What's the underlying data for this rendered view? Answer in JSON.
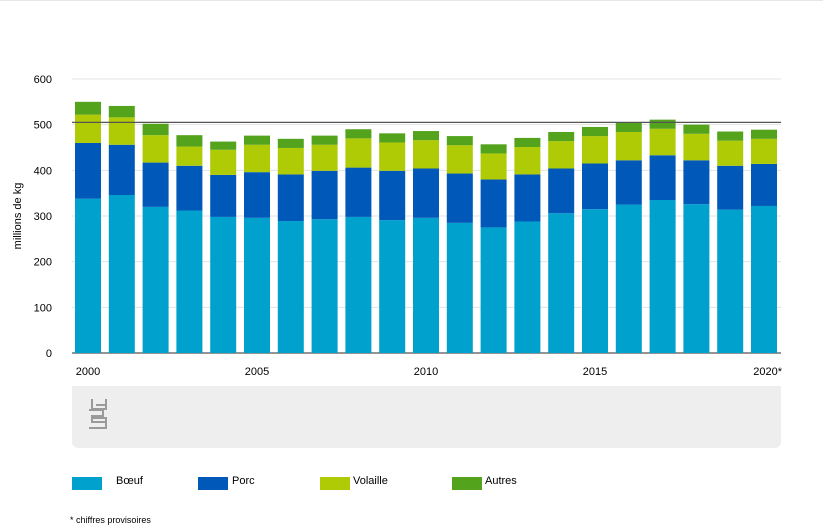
{
  "chart_data": {
    "type": "bar",
    "stacked": true,
    "ylabel": "millions de kg",
    "ylim": [
      0,
      600
    ],
    "yticks": [
      0,
      100,
      200,
      300,
      400,
      500,
      600
    ],
    "xtick_labels": [
      "2000",
      "2005",
      "2010",
      "2015",
      "2020*"
    ],
    "grid": true,
    "legend_position": "bottom",
    "reference_line": 505,
    "categories": [
      "2000",
      "2001",
      "2002",
      "2003",
      "2004",
      "2005",
      "2006",
      "2007",
      "2008",
      "2009",
      "2010",
      "2011",
      "2012",
      "2013",
      "2014",
      "2015",
      "2016",
      "2017",
      "2018",
      "2019",
      "2020*"
    ],
    "series": [
      {
        "name": "Bœuf",
        "color": "#00a1cd",
        "values": [
          338,
          346,
          320,
          312,
          298,
          296,
          289,
          293,
          298,
          291,
          296,
          285,
          275,
          288,
          306,
          315,
          325,
          335,
          326,
          314,
          322
        ]
      },
      {
        "name": "Porc",
        "color": "#0058b8",
        "values": [
          122,
          110,
          97,
          98,
          92,
          100,
          102,
          106,
          108,
          108,
          108,
          108,
          105,
          103,
          98,
          100,
          97,
          98,
          96,
          96,
          92
        ]
      },
      {
        "name": "Volaille",
        "color": "#afcb05",
        "values": [
          62,
          60,
          60,
          42,
          55,
          60,
          58,
          57,
          64,
          62,
          62,
          62,
          57,
          60,
          60,
          60,
          62,
          58,
          58,
          55,
          55
        ]
      },
      {
        "name": "Autres",
        "color": "#53a31d",
        "values": [
          28,
          25,
          25,
          25,
          18,
          20,
          20,
          20,
          20,
          20,
          20,
          20,
          20,
          20,
          20,
          20,
          20,
          20,
          20,
          20,
          20
        ]
      }
    ]
  },
  "legend": [
    "Bœuf",
    "Porc",
    "Volaille",
    "Autres"
  ],
  "footnote": "* chiffres provisoires",
  "colors": {
    "boeuf": "#00a1cd",
    "porc": "#0058b8",
    "volaille": "#afcb05",
    "autres": "#53a31d",
    "panel": "#eeeeee"
  },
  "logo_icon": "cbs-logo-icon"
}
